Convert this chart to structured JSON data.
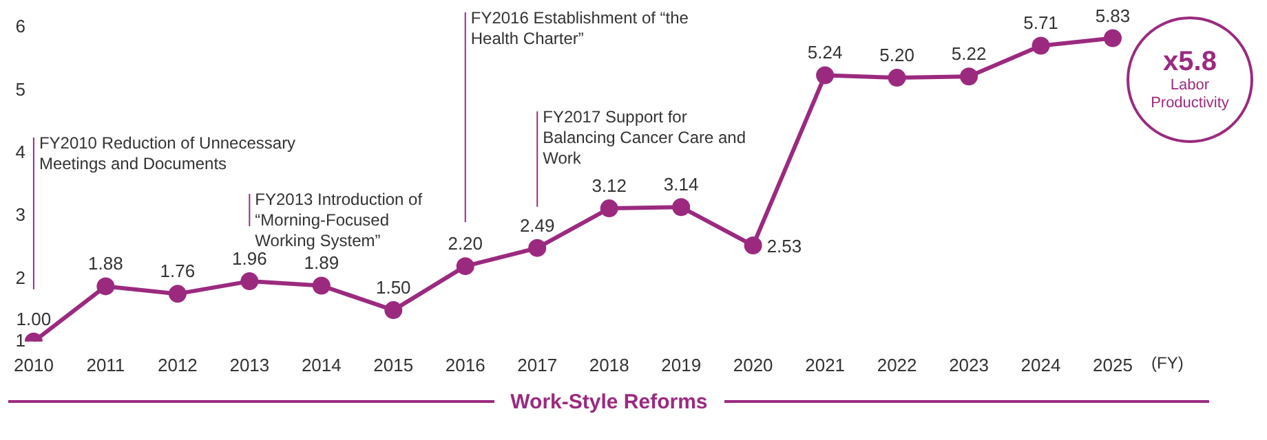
{
  "chart_data": {
    "type": "line",
    "xlabel": "(FY)",
    "categories": [
      "2010",
      "2011",
      "2012",
      "2013",
      "2014",
      "2015",
      "2016",
      "2017",
      "2018",
      "2019",
      "2020",
      "2021",
      "2022",
      "2023",
      "2024",
      "2025"
    ],
    "series": [
      {
        "color": "#9b2a7f",
        "values": [
          1.0,
          1.88,
          1.76,
          1.96,
          1.89,
          1.5,
          2.2,
          2.49,
          3.12,
          3.14,
          2.53,
          5.24,
          5.2,
          5.22,
          5.71,
          5.83
        ],
        "value_labels": [
          "1.00",
          "1.88",
          "1.76",
          "1.96",
          "1.89",
          "1.50",
          "2.20",
          "2.49",
          "3.12",
          "3.14",
          "2.53",
          "5.24",
          "5.20",
          "5.22",
          "5.71",
          "5.83"
        ]
      }
    ],
    "ylim": [
      1,
      6
    ],
    "yticks": [
      1,
      2,
      3,
      4,
      5,
      6
    ],
    "grid": false,
    "legend": false,
    "marker": "circle",
    "line_style": "solid",
    "annotations": [
      "FY2010 Reduction of Unnecessary Meetings and Documents",
      "FY2013 Introduction of “Morning-Focused Working System”",
      "FY2016 Establishment of “the Health Charter”",
      "FY2017 Support for Balancing Cancer Care and Work",
      "Work-Style Reforms",
      "x5.8",
      "Labor Productivity"
    ]
  }
}
